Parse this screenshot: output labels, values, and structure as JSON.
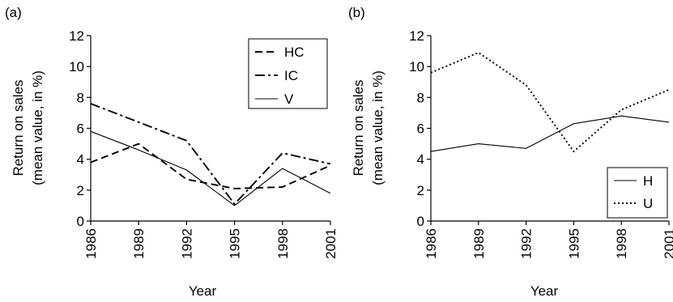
{
  "chart_data": [
    {
      "panel_label": "(a)",
      "type": "line",
      "xlabel": "Year",
      "ylabel_lines": [
        "Return on sales",
        "(mean value, in %)"
      ],
      "x": [
        1986,
        1989,
        1992,
        1995,
        1998,
        2001
      ],
      "ylim": [
        0,
        12
      ],
      "yticks": [
        0,
        2,
        4,
        6,
        8,
        10,
        12
      ],
      "grid": false,
      "legend_position": "top-right",
      "series": [
        {
          "name": "HC",
          "style": "dashed",
          "values": [
            3.8,
            5.0,
            2.7,
            2.1,
            2.2,
            3.6
          ]
        },
        {
          "name": "IC",
          "style": "dash-dot",
          "values": [
            7.6,
            6.4,
            5.2,
            1.1,
            4.4,
            3.7
          ]
        },
        {
          "name": "V",
          "style": "solid",
          "values": [
            5.8,
            4.6,
            3.3,
            1.0,
            3.4,
            1.8
          ]
        }
      ]
    },
    {
      "panel_label": "(b)",
      "type": "line",
      "xlabel": "Year",
      "ylabel_lines": [
        "Return on sales",
        "(mean value, in %)"
      ],
      "x": [
        1986,
        1989,
        1992,
        1995,
        1998,
        2001
      ],
      "ylim": [
        0,
        12
      ],
      "yticks": [
        0,
        2,
        4,
        6,
        8,
        10,
        12
      ],
      "grid": false,
      "legend_position": "bottom-right",
      "series": [
        {
          "name": "H",
          "style": "solid",
          "values": [
            4.5,
            5.0,
            4.7,
            6.3,
            6.8,
            6.4
          ]
        },
        {
          "name": "U",
          "style": "dotted",
          "values": [
            9.6,
            10.9,
            8.8,
            4.5,
            7.2,
            8.5
          ]
        }
      ]
    }
  ]
}
